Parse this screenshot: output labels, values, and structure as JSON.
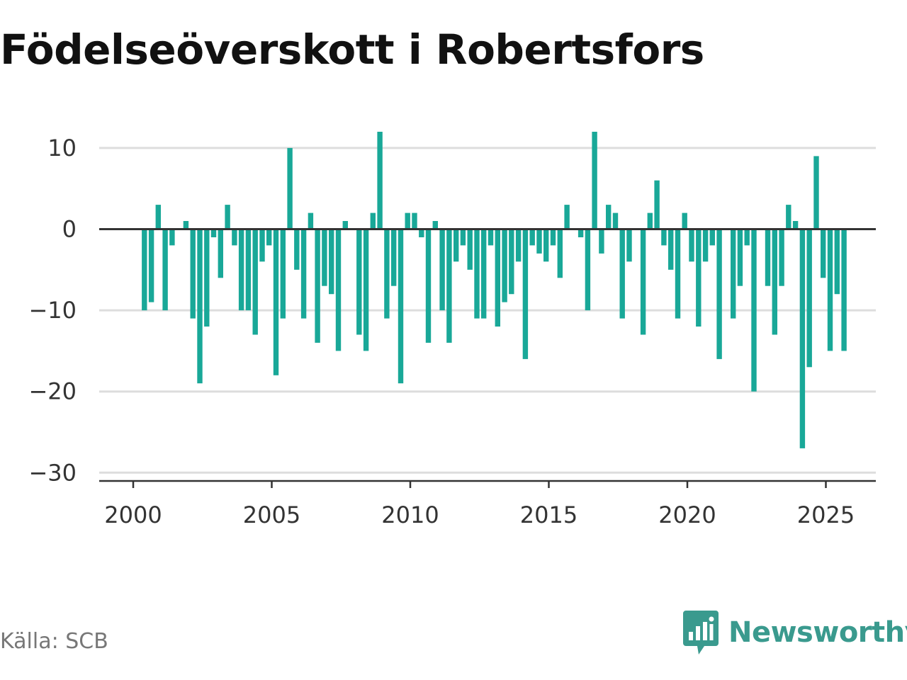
{
  "title": "Födelseöverskott i Robertsfors",
  "source": "Källa: SCB",
  "brand": {
    "name": "Newsworthy",
    "icon": "bar-chart-speech-bubble-icon"
  },
  "colors": {
    "bar": "#19a898",
    "grid": "#dddddd",
    "zero_line": "#333333",
    "axis": "#333333",
    "brand": "#3a9a8e"
  },
  "chart_data": {
    "type": "bar",
    "title": "Födelseöverskott i Robertsfors",
    "xlabel": "",
    "ylabel": "",
    "frequency": "quarterly",
    "x_start": "2000-Q2",
    "ylim": [
      -31,
      14
    ],
    "yticks": [
      10,
      0,
      -10,
      -20,
      -30
    ],
    "ytick_labels": [
      "10",
      "0",
      "−10",
      "−20",
      "−30"
    ],
    "xticks": [
      2000,
      2005,
      2010,
      2015,
      2020,
      2025
    ],
    "xtick_labels": [
      "2000",
      "2005",
      "2010",
      "2015",
      "2020",
      "2025"
    ],
    "grid": true,
    "values": [
      -10,
      -9,
      3,
      -10,
      -2,
      0,
      1,
      -11,
      -19,
      -12,
      -1,
      -6,
      3,
      -2,
      -10,
      -10,
      -13,
      -4,
      -2,
      -18,
      -11,
      10,
      -5,
      -11,
      2,
      -14,
      -7,
      -8,
      -15,
      1,
      0,
      -13,
      -15,
      2,
      12,
      -11,
      -7,
      -19,
      2,
      2,
      -1,
      -14,
      1,
      -10,
      -14,
      -4,
      -2,
      -5,
      -11,
      -11,
      -2,
      -12,
      -9,
      -8,
      -4,
      -16,
      -2,
      -3,
      -4,
      -2,
      -6,
      3,
      0,
      -1,
      -10,
      12,
      -3,
      3,
      2,
      -11,
      -4,
      0,
      -13,
      2,
      6,
      -2,
      -5,
      -11,
      2,
      -4,
      -12,
      -4,
      -2,
      -16,
      0,
      -11,
      -7,
      -2,
      -20,
      0,
      -7,
      -13,
      -7,
      3,
      1,
      -27,
      -17,
      9,
      -6,
      -15,
      -8,
      -15
    ]
  }
}
